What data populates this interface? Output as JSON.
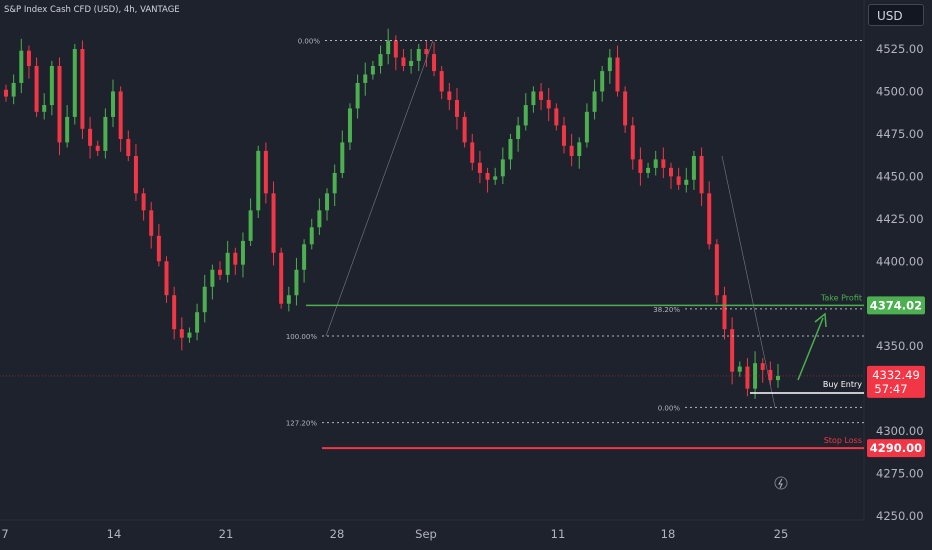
{
  "header": {
    "symbol_title": "S&P Index Cash CFD (USD), 4h, VANTAGE",
    "currency": "USD"
  },
  "colors": {
    "background": "#1e222d",
    "up_candle": "#4caf50",
    "down_candle": "#f23645",
    "take_profit": "#4caf50",
    "stop_loss": "#f23645",
    "buy_entry": "#ffffff",
    "current_price": "#f23645",
    "axis_text": "#b2b5be"
  },
  "chart_data": {
    "type": "candlestick",
    "ylim": [
      4250,
      4530
    ],
    "y_ticks": [
      "4250.00",
      "4275.00",
      "4300.00",
      "4325.00",
      "4350.00",
      "4375.00",
      "4400.00",
      "4425.00",
      "4450.00",
      "4475.00",
      "4500.00",
      "4525.00"
    ],
    "x_ticks": [
      "7",
      "14",
      "21",
      "28",
      "Sep",
      "11",
      "18",
      "25"
    ],
    "closes": [
      4497,
      4505,
      4524,
      4515,
      4488,
      4492,
      4515,
      4470,
      4485,
      4525,
      4478,
      4468,
      4465,
      4485,
      4500,
      4472,
      4462,
      4440,
      4430,
      4415,
      4400,
      4380,
      4360,
      4355,
      4358,
      4370,
      4385,
      4395,
      4392,
      4405,
      4398,
      4412,
      4430,
      4465,
      4440,
      4405,
      4375,
      4380,
      4395,
      4410,
      4420,
      4430,
      4440,
      4452,
      4470,
      4490,
      4505,
      4510,
      4515,
      4522,
      4530,
      4520,
      4515,
      4518,
      4525,
      4522,
      4512,
      4500,
      4495,
      4485,
      4470,
      4458,
      4452,
      4448,
      4450,
      4460,
      4472,
      4480,
      4492,
      4500,
      4495,
      4490,
      4480,
      4468,
      4462,
      4470,
      4488,
      4500,
      4512,
      4520,
      4500,
      4480,
      4460,
      4452,
      4455,
      4460,
      4455,
      4450,
      4445,
      4448,
      4462,
      4440,
      4410,
      4380,
      4360,
      4335,
      4338,
      4325,
      4340,
      4336,
      4330,
      4332.49
    ],
    "fib_levels": [
      {
        "label": "0.00%",
        "value": 4530
      },
      {
        "label": "38.20%",
        "value": 4372
      },
      {
        "label": "100.00%",
        "value": 4356
      },
      {
        "label": "0.00%",
        "value": 4314
      },
      {
        "label": "127.20%",
        "value": 4305
      }
    ],
    "take_profit": {
      "label": "Take Profit",
      "value": "4374.02"
    },
    "buy_entry": {
      "label": "Buy Entry",
      "value": "4332.49"
    },
    "stop_loss": {
      "label": "Stop Loss",
      "value": "4290.00"
    },
    "current_price": {
      "value": "4332.49",
      "countdown": "57:47"
    }
  }
}
